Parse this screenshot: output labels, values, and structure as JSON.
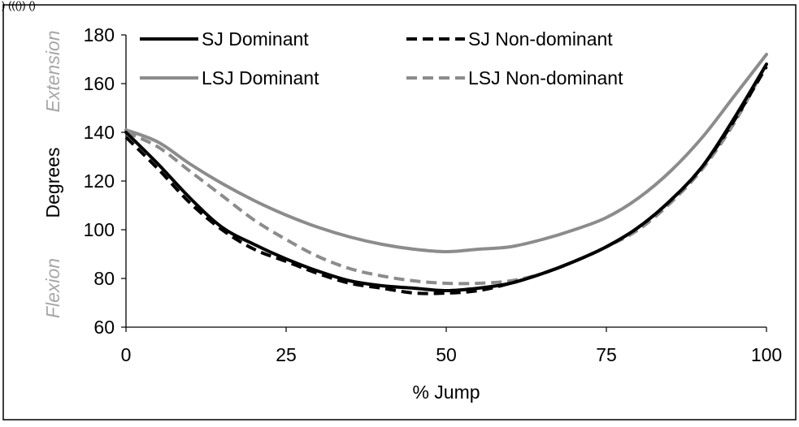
{
  "header_fragment": ") ((()) ()",
  "chart_data": {
    "type": "line",
    "xlabel": "% Jump",
    "ylabel": "Degrees",
    "ylabel_top": "Extension",
    "ylabel_bottom": "Flexion",
    "xlim": [
      0,
      100
    ],
    "ylim": [
      60,
      180
    ],
    "xticks": [
      0,
      25,
      50,
      75,
      100
    ],
    "yticks": [
      60,
      80,
      100,
      120,
      140,
      160,
      180
    ],
    "grid": false,
    "legend_position": "top",
    "colors": {
      "black": "#000000",
      "gray": "#8c8c8c",
      "subtitle_gray": "#a6a6a6"
    },
    "series": [
      {
        "name": "SJ Dominant",
        "color": "#000000",
        "dash": "solid",
        "x": [
          0,
          5,
          10,
          15,
          20,
          25,
          30,
          35,
          40,
          45,
          50,
          55,
          60,
          65,
          70,
          75,
          80,
          85,
          90,
          95,
          100
        ],
        "y": [
          140,
          127,
          113,
          101,
          94,
          88,
          83,
          79,
          77,
          76,
          75,
          76,
          78,
          82,
          87,
          93,
          101,
          112,
          126,
          146,
          168
        ]
      },
      {
        "name": "SJ Non-dominant",
        "color": "#000000",
        "dash": "dashed",
        "x": [
          0,
          5,
          10,
          15,
          20,
          25,
          30,
          35,
          40,
          45,
          50,
          55,
          60,
          65,
          70,
          75,
          80,
          85,
          90,
          95,
          100
        ],
        "y": [
          138,
          125,
          111,
          100,
          92,
          87,
          82,
          78,
          76,
          74,
          74,
          75,
          78,
          82,
          87,
          93,
          101,
          112,
          126,
          145,
          167
        ]
      },
      {
        "name": "LSJ Dominant",
        "color": "#8c8c8c",
        "dash": "solid",
        "x": [
          0,
          5,
          10,
          15,
          20,
          25,
          30,
          35,
          40,
          45,
          50,
          55,
          60,
          65,
          70,
          75,
          80,
          85,
          90,
          95,
          100
        ],
        "y": [
          141,
          136,
          127,
          119,
          112,
          106,
          101,
          97,
          94,
          92,
          91,
          92,
          93,
          96,
          100,
          105,
          113,
          124,
          138,
          155,
          172
        ]
      },
      {
        "name": "LSJ Non-dominant",
        "color": "#8c8c8c",
        "dash": "dashed",
        "x": [
          0,
          5,
          10,
          15,
          20,
          25,
          30,
          35,
          40,
          45,
          50,
          55,
          60,
          65,
          70,
          75,
          80,
          85,
          90,
          95,
          100
        ],
        "y": [
          140,
          134,
          124,
          114,
          104,
          96,
          89,
          84,
          81,
          79,
          78,
          78,
          79,
          82,
          87,
          93,
          100,
          111,
          125,
          144,
          168
        ]
      }
    ]
  }
}
